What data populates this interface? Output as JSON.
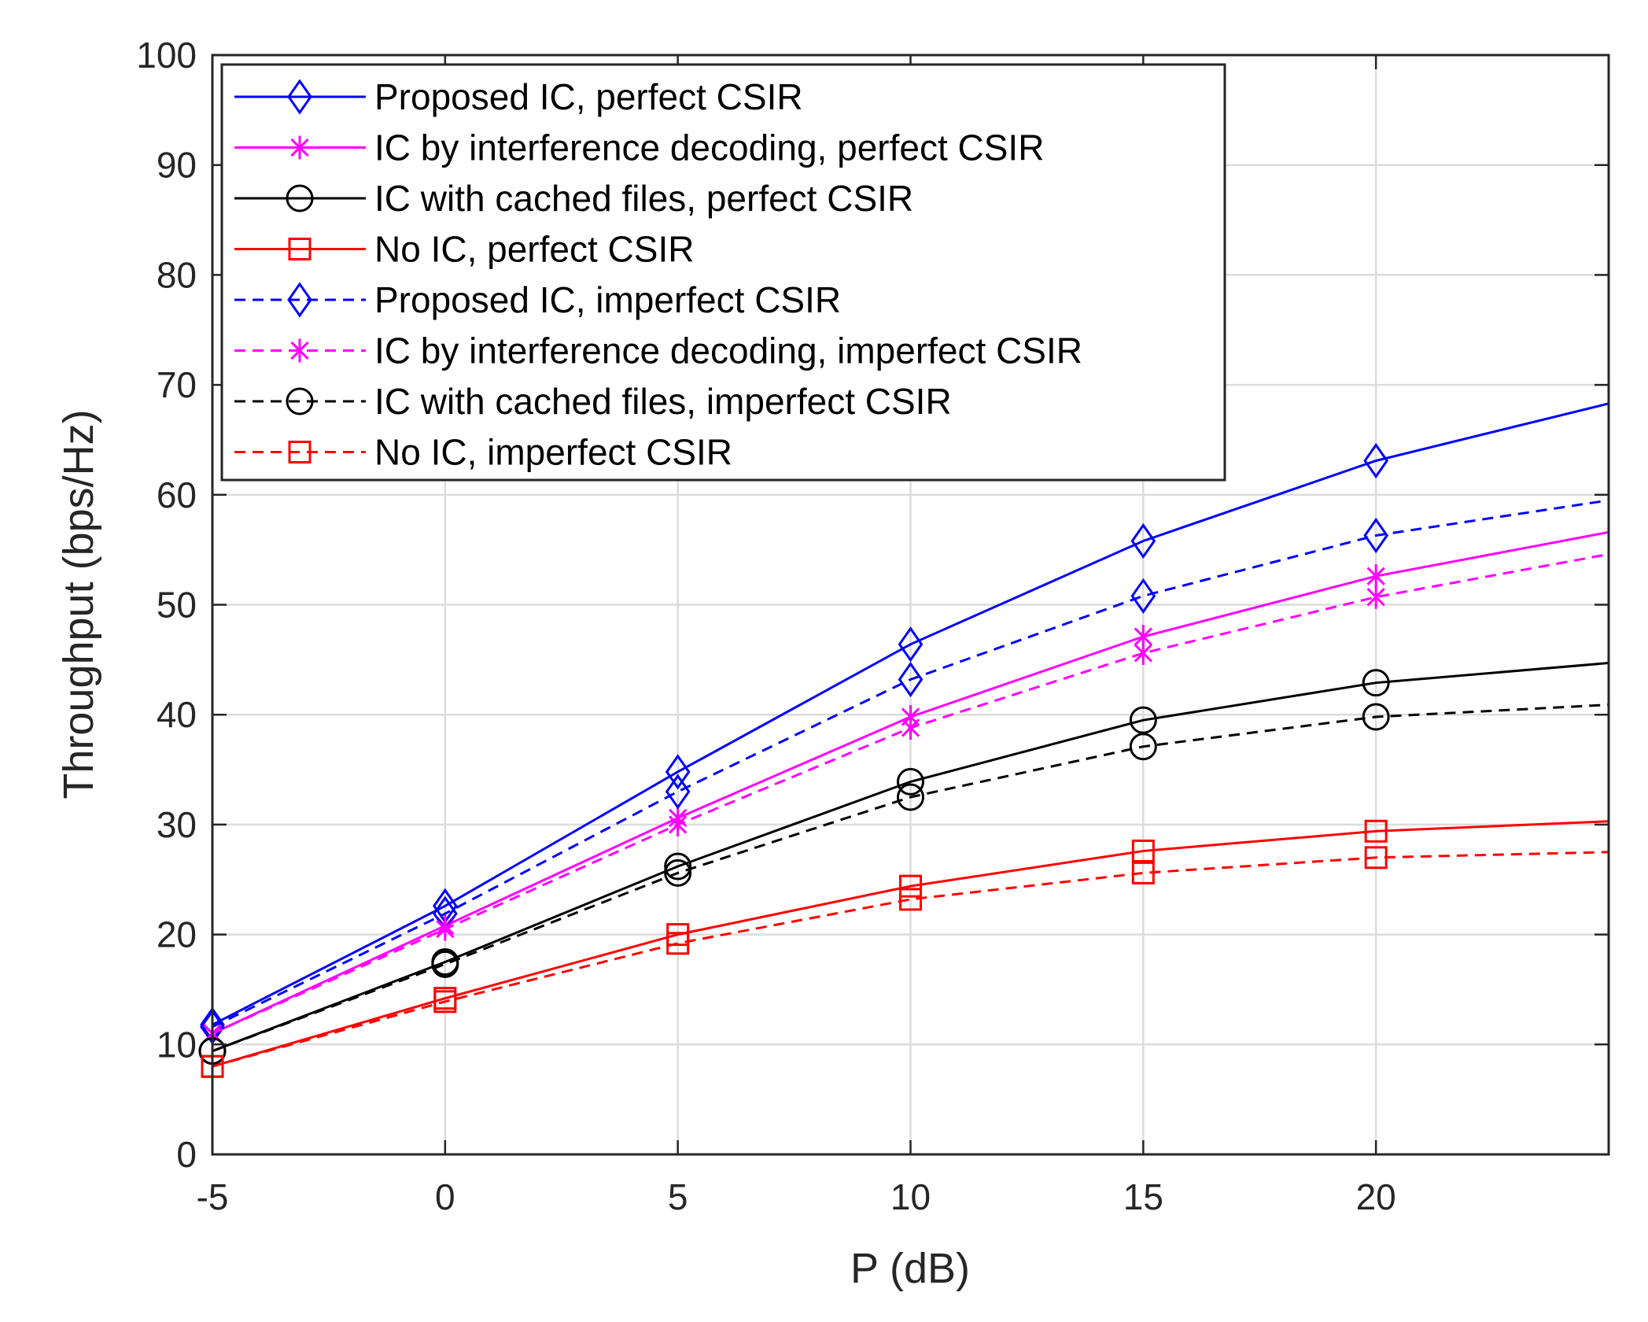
{
  "chart_data": {
    "type": "line",
    "title": "",
    "xlabel": "P (dB)",
    "ylabel": "Throughput (bps/Hz)",
    "xlim": [
      -5,
      25
    ],
    "ylim": [
      0,
      100
    ],
    "grid": true,
    "legend_position": "top-left",
    "x": [
      -5,
      0,
      5,
      10,
      15,
      20,
      25
    ],
    "xticks": [
      -5,
      0,
      5,
      10,
      15,
      20
    ],
    "yticks": [
      0,
      10,
      20,
      30,
      40,
      50,
      60,
      70,
      80,
      90,
      100
    ],
    "series": [
      {
        "name": "Proposed IC, perfect CSIR",
        "color": "#0000ff",
        "dash": "solid",
        "marker": "diamond",
        "marker_x": [
          -5,
          0,
          5,
          10,
          15,
          20
        ],
        "values": [
          11.8,
          22.6,
          34.8,
          46.4,
          55.8,
          63.1,
          68.3
        ]
      },
      {
        "name": "IC by interference decoding, perfect CSIR",
        "color": "#ff00ff",
        "dash": "solid",
        "marker": "asterisk",
        "marker_x": [
          -5,
          0,
          5,
          10,
          15,
          20
        ],
        "values": [
          11.0,
          20.8,
          30.6,
          39.8,
          47.1,
          52.6,
          56.6
        ]
      },
      {
        "name": "IC with cached files, perfect CSIR",
        "color": "#000000",
        "dash": "solid",
        "marker": "circle",
        "marker_x": [
          -5,
          0,
          5,
          10,
          15,
          20
        ],
        "values": [
          9.4,
          17.5,
          26.2,
          33.9,
          39.5,
          42.9,
          44.7
        ]
      },
      {
        "name": "No IC, perfect CSIR",
        "color": "#ff0000",
        "dash": "solid",
        "marker": "square",
        "marker_x": [
          -5,
          0,
          5,
          10,
          15,
          20
        ],
        "values": [
          8.0,
          14.2,
          20.0,
          24.4,
          27.6,
          29.4,
          30.3
        ]
      },
      {
        "name": "Proposed IC, imperfect CSIR",
        "color": "#0000ff",
        "dash": "dashed",
        "marker": "diamond",
        "marker_x": [
          -5,
          0,
          5,
          10,
          15,
          20
        ],
        "values": [
          11.6,
          21.9,
          33.0,
          43.2,
          50.8,
          56.3,
          59.5
        ]
      },
      {
        "name": "IC by interference decoding, imperfect CSIR",
        "color": "#ff00ff",
        "dash": "dashed",
        "marker": "asterisk",
        "marker_x": [
          -5,
          0,
          5,
          10,
          15,
          20
        ],
        "values": [
          11.0,
          20.5,
          30.0,
          38.8,
          45.6,
          50.7,
          54.6
        ]
      },
      {
        "name": "IC with cached files, imperfect CSIR",
        "color": "#000000",
        "dash": "dashed",
        "marker": "circle",
        "marker_x": [
          -5,
          0,
          5,
          10,
          15,
          20
        ],
        "values": [
          9.4,
          17.3,
          25.6,
          32.5,
          37.1,
          39.8,
          40.9
        ]
      },
      {
        "name": "No IC, imperfect CSIR",
        "color": "#ff0000",
        "dash": "dashed",
        "marker": "square",
        "marker_x": [
          -5,
          0,
          5,
          10,
          15,
          20
        ],
        "values": [
          8.0,
          13.9,
          19.2,
          23.2,
          25.6,
          27.0,
          27.5
        ]
      }
    ]
  }
}
